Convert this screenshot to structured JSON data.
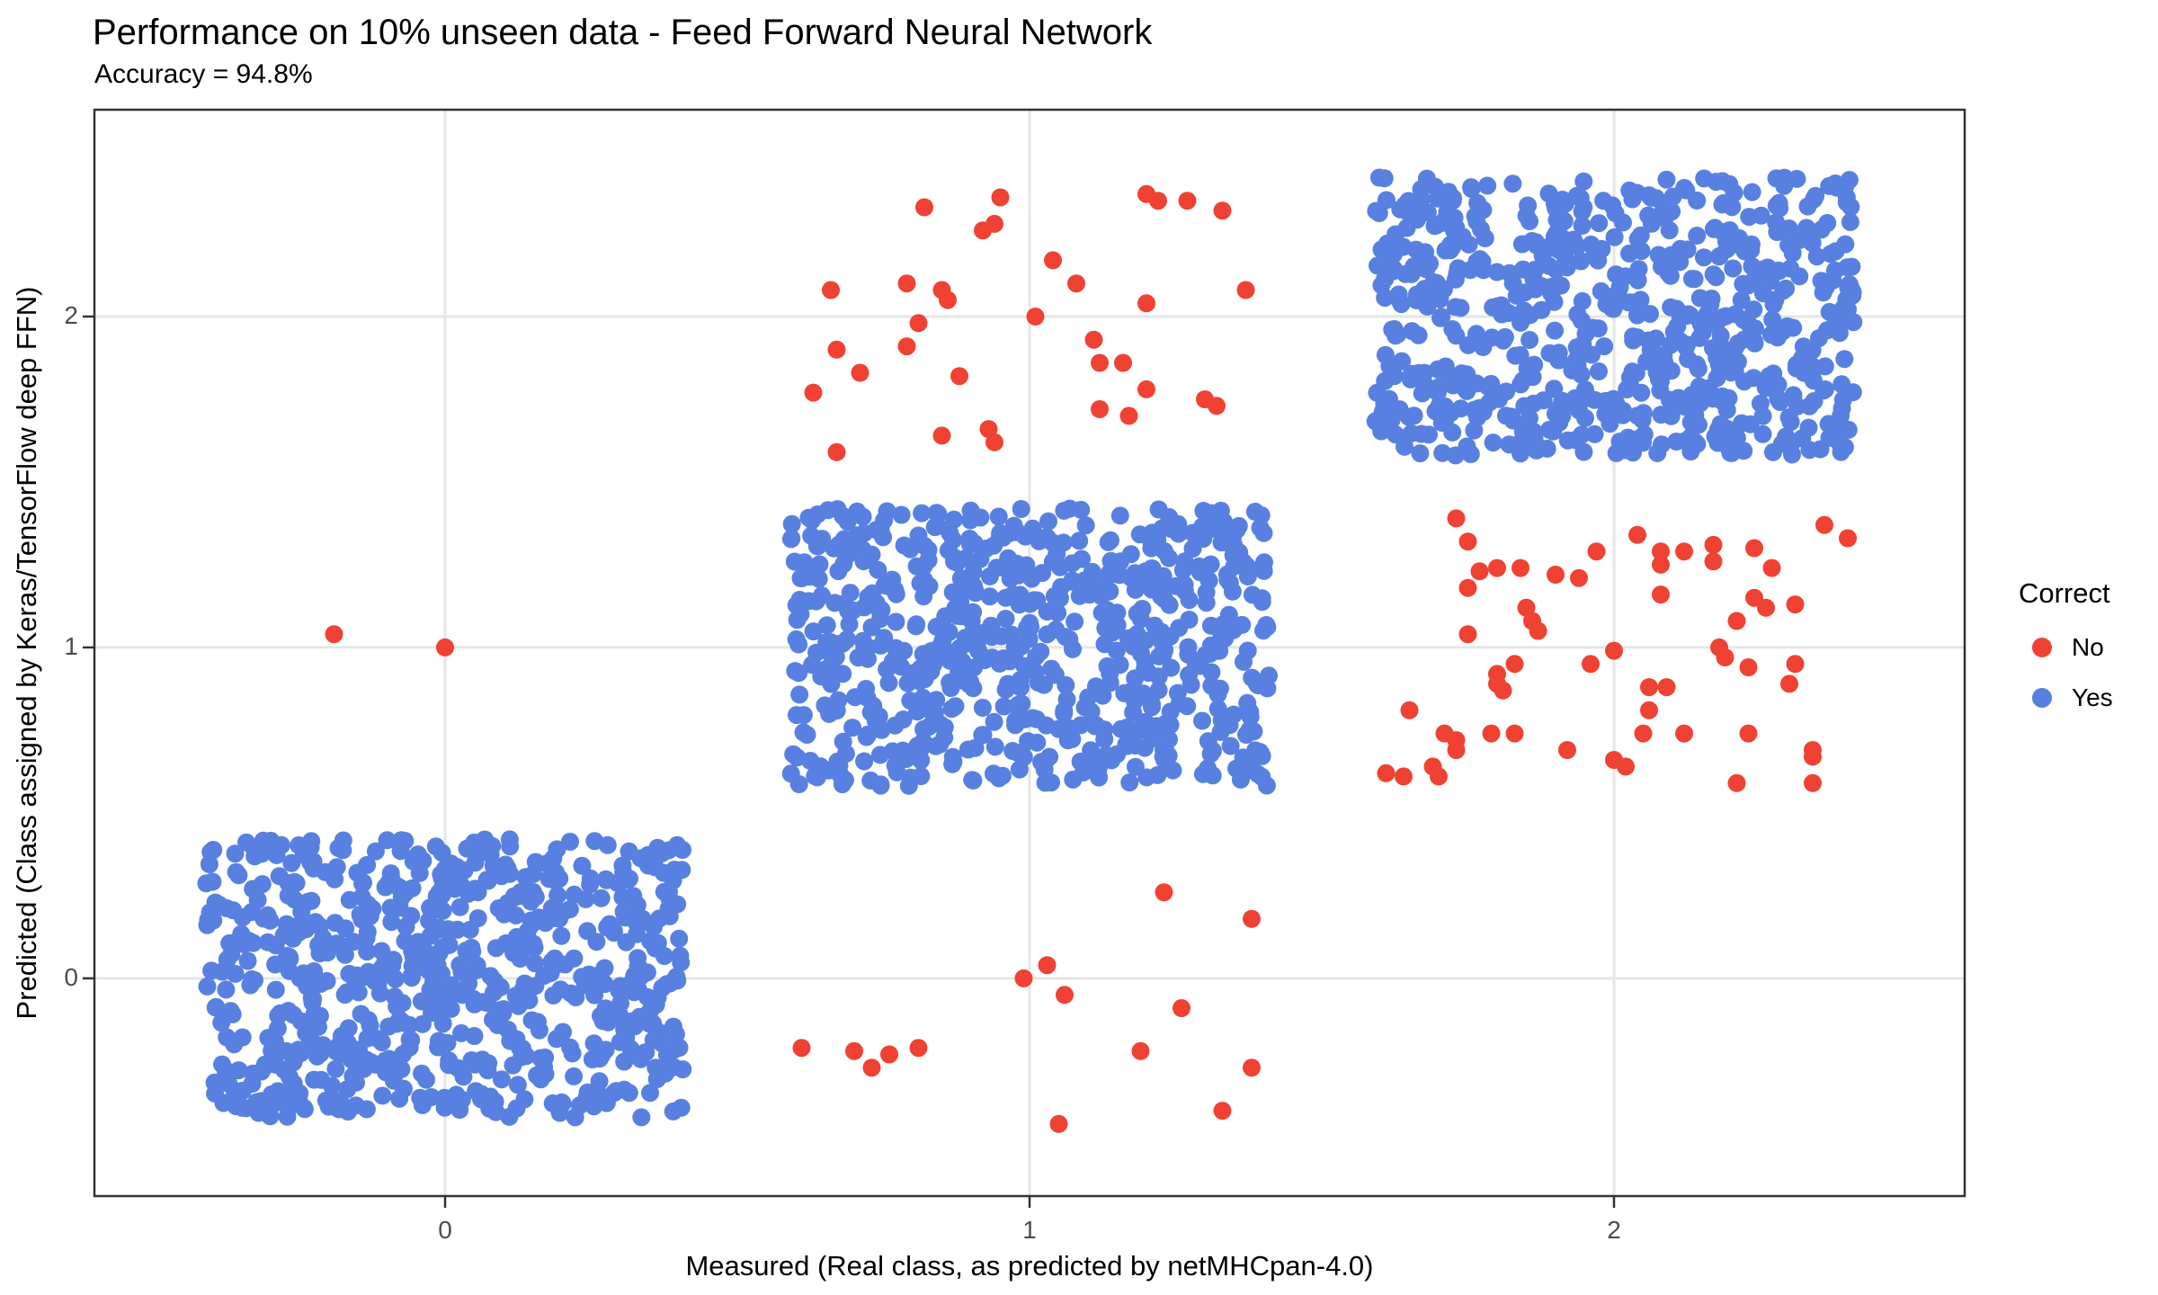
{
  "title": "Performance on 10% unseen data - Feed Forward Neural Network",
  "subtitle": "Accuracy = 94.8%",
  "colors": {
    "correct_blue": "#5880E0",
    "incorrect_red": "#EF4233",
    "gridline": "#E6E6E6",
    "panel_border": "#333333",
    "tick_mark": "#333333",
    "tick_text": "#4d4d4d",
    "background": "#ffffff"
  },
  "chart_data": {
    "type": "scatter",
    "title": "Performance on 10% unseen data - Feed Forward Neural Network",
    "subtitle": "Accuracy = 94.8%",
    "xlabel": "Measured (Real class, as predicted by netMHCpan-4.0)",
    "ylabel": "Predicted (Class assigned by Keras/TensorFlow deep FFN)",
    "x_ticks": [
      0,
      1,
      2
    ],
    "y_ticks": [
      0,
      1,
      2
    ],
    "x_tick_labels": [
      "0",
      "1",
      "2"
    ],
    "y_tick_labels": [
      "0",
      "1",
      "2"
    ],
    "xlim": [
      -0.6,
      2.6
    ],
    "ylim": [
      -0.658,
      2.625
    ],
    "grid": "major-only",
    "point_radius_px": 10,
    "jitter": {
      "width": 0.41,
      "height": 0.42
    },
    "legend": {
      "title": "Correct",
      "position": "right",
      "entries": [
        {
          "label": "No",
          "color": "#EF4233"
        },
        {
          "label": "Yes",
          "color": "#5880E0"
        }
      ]
    },
    "correct_series": {
      "name": "Yes",
      "color": "#5880E0",
      "note": "Uniform jittered blocks centered on (measured, predicted); counts estimated from density and 94.8% accuracy",
      "clusters": [
        {
          "measured": 0,
          "predicted": 0,
          "count": 693
        },
        {
          "measured": 1,
          "predicted": 1,
          "count": 693
        },
        {
          "measured": 2,
          "predicted": 2,
          "count": 692
        }
      ]
    },
    "incorrect_series": {
      "name": "No",
      "color": "#EF4233",
      "points": [
        [
          -0.19,
          1.04
        ],
        [
          0.0,
          1.0
        ],
        [
          0.61,
          -0.21
        ],
        [
          0.7,
          -0.22
        ],
        [
          0.73,
          -0.27
        ],
        [
          0.76,
          -0.23
        ],
        [
          0.81,
          -0.21
        ],
        [
          0.99,
          0.0
        ],
        [
          1.03,
          0.04
        ],
        [
          1.06,
          -0.05
        ],
        [
          1.23,
          0.26
        ],
        [
          1.38,
          0.18
        ],
        [
          1.26,
          -0.09
        ],
        [
          1.19,
          -0.22
        ],
        [
          1.38,
          -0.27
        ],
        [
          1.33,
          -0.4
        ],
        [
          1.05,
          -0.44
        ],
        [
          0.82,
          2.33
        ],
        [
          0.95,
          2.36
        ],
        [
          0.92,
          2.26
        ],
        [
          0.94,
          2.28
        ],
        [
          1.2,
          2.37
        ],
        [
          1.22,
          2.35
        ],
        [
          1.27,
          2.35
        ],
        [
          1.33,
          2.32
        ],
        [
          0.66,
          2.08
        ],
        [
          0.79,
          2.1
        ],
        [
          0.85,
          2.08
        ],
        [
          0.86,
          2.05
        ],
        [
          1.04,
          2.17
        ],
        [
          1.08,
          2.1
        ],
        [
          1.2,
          2.04
        ],
        [
          1.37,
          2.08
        ],
        [
          1.01,
          2.0
        ],
        [
          0.81,
          1.98
        ],
        [
          0.67,
          1.9
        ],
        [
          0.79,
          1.91
        ],
        [
          0.71,
          1.83
        ],
        [
          0.63,
          1.77
        ],
        [
          0.88,
          1.82
        ],
        [
          1.11,
          1.93
        ],
        [
          1.12,
          1.86
        ],
        [
          1.16,
          1.86
        ],
        [
          1.2,
          1.78
        ],
        [
          1.12,
          1.72
        ],
        [
          1.17,
          1.7
        ],
        [
          1.3,
          1.75
        ],
        [
          1.32,
          1.73
        ],
        [
          0.93,
          1.66
        ],
        [
          0.94,
          1.62
        ],
        [
          0.85,
          1.64
        ],
        [
          0.67,
          1.59
        ],
        [
          1.73,
          1.39
        ],
        [
          1.75,
          1.32
        ],
        [
          1.77,
          1.23
        ],
        [
          1.8,
          1.24
        ],
        [
          1.75,
          1.18
        ],
        [
          1.84,
          1.24
        ],
        [
          1.9,
          1.22
        ],
        [
          1.94,
          1.21
        ],
        [
          1.97,
          1.29
        ],
        [
          2.04,
          1.34
        ],
        [
          2.08,
          1.29
        ],
        [
          2.08,
          1.25
        ],
        [
          2.12,
          1.29
        ],
        [
          2.17,
          1.31
        ],
        [
          2.17,
          1.26
        ],
        [
          2.24,
          1.3
        ],
        [
          2.27,
          1.24
        ],
        [
          2.36,
          1.37
        ],
        [
          2.4,
          1.33
        ],
        [
          2.08,
          1.16
        ],
        [
          2.24,
          1.15
        ],
        [
          2.26,
          1.12
        ],
        [
          2.31,
          1.13
        ],
        [
          2.21,
          1.08
        ],
        [
          1.85,
          1.12
        ],
        [
          1.86,
          1.08
        ],
        [
          1.87,
          1.05
        ],
        [
          1.75,
          1.04
        ],
        [
          2.0,
          0.99
        ],
        [
          2.18,
          1.0
        ],
        [
          2.19,
          0.97
        ],
        [
          1.83,
          0.95
        ],
        [
          1.96,
          0.95
        ],
        [
          1.8,
          0.92
        ],
        [
          1.8,
          0.89
        ],
        [
          2.23,
          0.94
        ],
        [
          2.31,
          0.95
        ],
        [
          2.3,
          0.89
        ],
        [
          2.06,
          0.88
        ],
        [
          2.09,
          0.88
        ],
        [
          1.81,
          0.87
        ],
        [
          2.06,
          0.81
        ],
        [
          1.65,
          0.81
        ],
        [
          1.83,
          0.74
        ],
        [
          1.71,
          0.74
        ],
        [
          1.73,
          0.72
        ],
        [
          1.73,
          0.69
        ],
        [
          1.79,
          0.74
        ],
        [
          2.05,
          0.74
        ],
        [
          2.12,
          0.74
        ],
        [
          2.23,
          0.74
        ],
        [
          1.92,
          0.69
        ],
        [
          2.0,
          0.66
        ],
        [
          2.02,
          0.64
        ],
        [
          1.61,
          0.62
        ],
        [
          1.64,
          0.61
        ],
        [
          1.69,
          0.64
        ],
        [
          1.7,
          0.61
        ],
        [
          2.34,
          0.69
        ],
        [
          2.34,
          0.67
        ],
        [
          2.21,
          0.59
        ],
        [
          2.34,
          0.59
        ]
      ]
    }
  }
}
